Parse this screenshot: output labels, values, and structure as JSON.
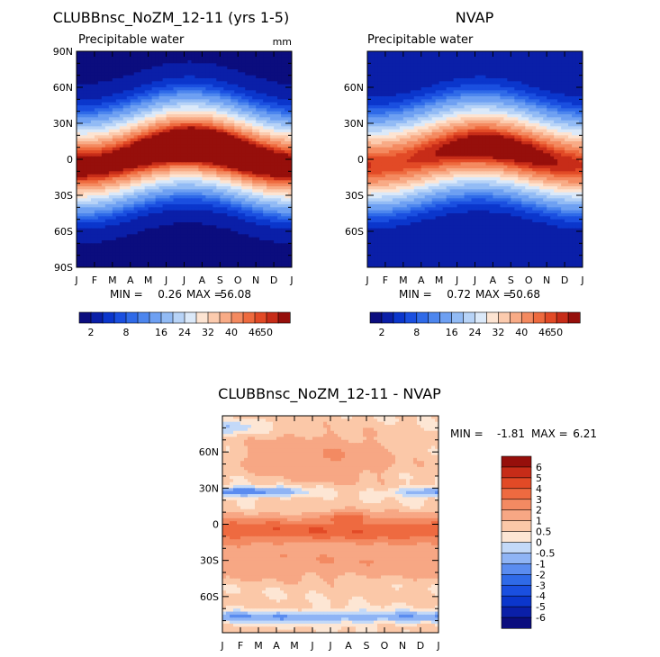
{
  "chart_data": [
    {
      "type": "heatmap",
      "title": "CLUBBnsc_NoZM_12-11 (yrs 1-5)",
      "subtitle_left": "Precipitable water",
      "units": "mm",
      "x_ticks": [
        "J",
        "F",
        "M",
        "A",
        "M",
        "J",
        "J",
        "A",
        "S",
        "O",
        "N",
        "D",
        "J"
      ],
      "y_ticks": [
        "90N",
        "60N",
        "30N",
        "0",
        "30S",
        "60S",
        "90S"
      ],
      "ylim": [
        -90,
        90
      ],
      "stats": {
        "min_label": "MIN =",
        "min": "0.26",
        "max_label": "MAX =",
        "max": "56.08"
      },
      "colorbar": {
        "orientation": "horizontal",
        "labels": [
          "2",
          "8",
          "16",
          "24",
          "32",
          "40",
          "46",
          "50"
        ],
        "levels": [
          2,
          4,
          6,
          8,
          10,
          12,
          16,
          20,
          24,
          28,
          32,
          36,
          40,
          44,
          46,
          48,
          50
        ]
      },
      "field": {
        "peak_mm": 56.08,
        "pole_mm": 1.5,
        "itcz_amplitude_deg": 9
      }
    },
    {
      "type": "heatmap",
      "title": "NVAP",
      "subtitle_left": "Precipitable water",
      "x_ticks": [
        "J",
        "F",
        "M",
        "A",
        "M",
        "J",
        "J",
        "A",
        "S",
        "O",
        "N",
        "D",
        "J"
      ],
      "y_ticks": [
        "60N",
        "30N",
        "0",
        "30S",
        "60S"
      ],
      "ylim": [
        -90,
        90
      ],
      "stats": {
        "min_label": "MIN =",
        "min": "0.72",
        "max_label": "MAX =",
        "max": "50.68"
      },
      "colorbar": {
        "orientation": "horizontal",
        "labels": [
          "2",
          "8",
          "16",
          "24",
          "32",
          "40",
          "46",
          "50"
        ],
        "levels": [
          2,
          4,
          6,
          8,
          10,
          12,
          16,
          20,
          24,
          28,
          32,
          36,
          40,
          44,
          46,
          48,
          50
        ]
      },
      "field": {
        "peak_mm": 50.68,
        "pole_mm": 2,
        "itcz_amplitude_deg": 8
      }
    },
    {
      "type": "heatmap",
      "title": "CLUBBnsc_NoZM_12-11 - NVAP",
      "x_ticks": [
        "J",
        "F",
        "M",
        "A",
        "M",
        "J",
        "J",
        "A",
        "S",
        "O",
        "N",
        "D",
        "J"
      ],
      "y_ticks": [
        "60N",
        "30N",
        "0",
        "30S",
        "60S"
      ],
      "ylim": [
        -90,
        90
      ],
      "stats": {
        "min_label": "MIN =",
        "min": "-1.81",
        "max_label": "MAX =",
        "max": "6.21"
      },
      "colorbar": {
        "orientation": "vertical",
        "labels": [
          "6",
          "5",
          "4",
          "3",
          "2",
          "1",
          "0.5",
          "0",
          "-0.5",
          "-1",
          "-2",
          "-3",
          "-4",
          "-5",
          "-6"
        ]
      }
    }
  ],
  "colors": {
    "abs_palette": [
      "#0b0d7e",
      "#0a1fa8",
      "#0b36cc",
      "#1a4fe0",
      "#2f6ae8",
      "#4d86ee",
      "#6ea0f2",
      "#92bbf5",
      "#b7d3f7",
      "#dbe9f9",
      "#fde4d2",
      "#fccbae",
      "#f8ab86",
      "#f48a60",
      "#ee6a3e",
      "#e24a26",
      "#c72c18",
      "#960f0b"
    ],
    "diff_palette": [
      "#0b0d7e",
      "#0a1fa8",
      "#0b36cc",
      "#1a4fe0",
      "#2f6ae8",
      "#5a8cf0",
      "#8fb4f5",
      "#c3d9f8",
      "#fde6d4",
      "#fbc8a8",
      "#f7a784",
      "#f38a62",
      "#ee6a40",
      "#e24a26",
      "#c72c18",
      "#960f0b"
    ]
  }
}
